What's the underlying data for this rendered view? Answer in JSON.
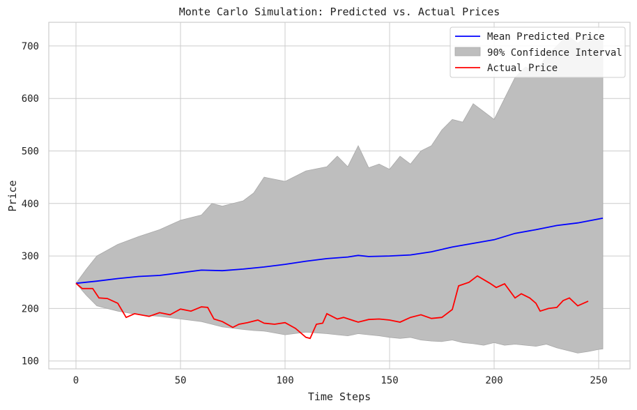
{
  "chart_data": {
    "type": "line",
    "title": "Monte Carlo Simulation: Predicted vs. Actual Prices",
    "xlabel": "Time Steps",
    "ylabel": "Price",
    "xlim": [
      -13,
      265
    ],
    "ylim": [
      85,
      745
    ],
    "xticks": [
      0,
      50,
      100,
      150,
      200,
      250
    ],
    "yticks": [
      100,
      200,
      300,
      400,
      500,
      600,
      700
    ],
    "grid": true,
    "legend_position": "top-right",
    "legend": [
      {
        "label": "Mean Predicted Price",
        "kind": "line",
        "color": "#0000ff"
      },
      {
        "label": "90% Confidence Interval",
        "kind": "band",
        "color": "#bebebe"
      },
      {
        "label": "Actual Price",
        "kind": "line",
        "color": "#ff0000"
      }
    ],
    "series": [
      {
        "name": "Mean Predicted Price",
        "color": "#0000ff",
        "x": [
          0,
          10,
          20,
          30,
          40,
          50,
          60,
          70,
          80,
          90,
          100,
          110,
          120,
          130,
          135,
          140,
          150,
          160,
          170,
          180,
          190,
          200,
          210,
          220,
          230,
          240,
          252
        ],
        "y": [
          248,
          252,
          257,
          261,
          263,
          268,
          273,
          272,
          275,
          279,
          284,
          290,
          295,
          298,
          301,
          299,
          300,
          302,
          308,
          317,
          324,
          331,
          343,
          350,
          358,
          363,
          372
        ]
      },
      {
        "name": "90% Confidence Interval",
        "color": "#bebebe",
        "x": [
          0,
          5,
          10,
          20,
          30,
          40,
          50,
          60,
          65,
          70,
          80,
          85,
          90,
          100,
          110,
          120,
          125,
          130,
          135,
          140,
          145,
          150,
          155,
          160,
          165,
          170,
          175,
          180,
          185,
          190,
          195,
          200,
          205,
          210,
          215,
          220,
          225,
          230,
          235,
          240,
          245,
          250,
          252
        ],
        "upper": [
          248,
          275,
          300,
          322,
          337,
          350,
          368,
          378,
          400,
          395,
          405,
          420,
          450,
          442,
          462,
          470,
          490,
          470,
          510,
          468,
          475,
          465,
          490,
          475,
          500,
          510,
          540,
          560,
          555,
          590,
          575,
          560,
          600,
          640,
          660,
          650,
          680,
          700,
          720,
          705,
          720,
          715,
          712
        ],
        "lower": [
          248,
          225,
          205,
          195,
          188,
          185,
          180,
          175,
          170,
          165,
          160,
          158,
          157,
          150,
          155,
          152,
          150,
          148,
          152,
          150,
          148,
          145,
          143,
          145,
          140,
          138,
          137,
          140,
          135,
          133,
          130,
          135,
          130,
          132,
          130,
          128,
          132,
          125,
          120,
          115,
          118,
          122,
          123
        ]
      },
      {
        "name": "Actual Price",
        "color": "#ff0000",
        "x": [
          0,
          3,
          8,
          11,
          15,
          20,
          24,
          28,
          35,
          40,
          45,
          50,
          55,
          60,
          63,
          66,
          70,
          75,
          78,
          82,
          87,
          90,
          95,
          100,
          105,
          110,
          112,
          115,
          118,
          120,
          125,
          128,
          135,
          140,
          145,
          150,
          155,
          160,
          165,
          170,
          175,
          180,
          183,
          188,
          192,
          198,
          201,
          205,
          210,
          213,
          217,
          220,
          222,
          226,
          230,
          233,
          236,
          240,
          245
        ],
        "y": [
          248,
          238,
          238,
          220,
          219,
          210,
          183,
          190,
          185,
          192,
          188,
          199,
          195,
          203,
          202,
          180,
          175,
          164,
          170,
          173,
          178,
          172,
          170,
          173,
          162,
          145,
          143,
          170,
          172,
          190,
          180,
          183,
          174,
          179,
          180,
          178,
          174,
          183,
          188,
          181,
          183,
          198,
          243,
          250,
          262,
          248,
          240,
          247,
          220,
          228,
          220,
          210,
          195,
          200,
          202,
          215,
          220,
          205,
          214
        ]
      }
    ]
  }
}
